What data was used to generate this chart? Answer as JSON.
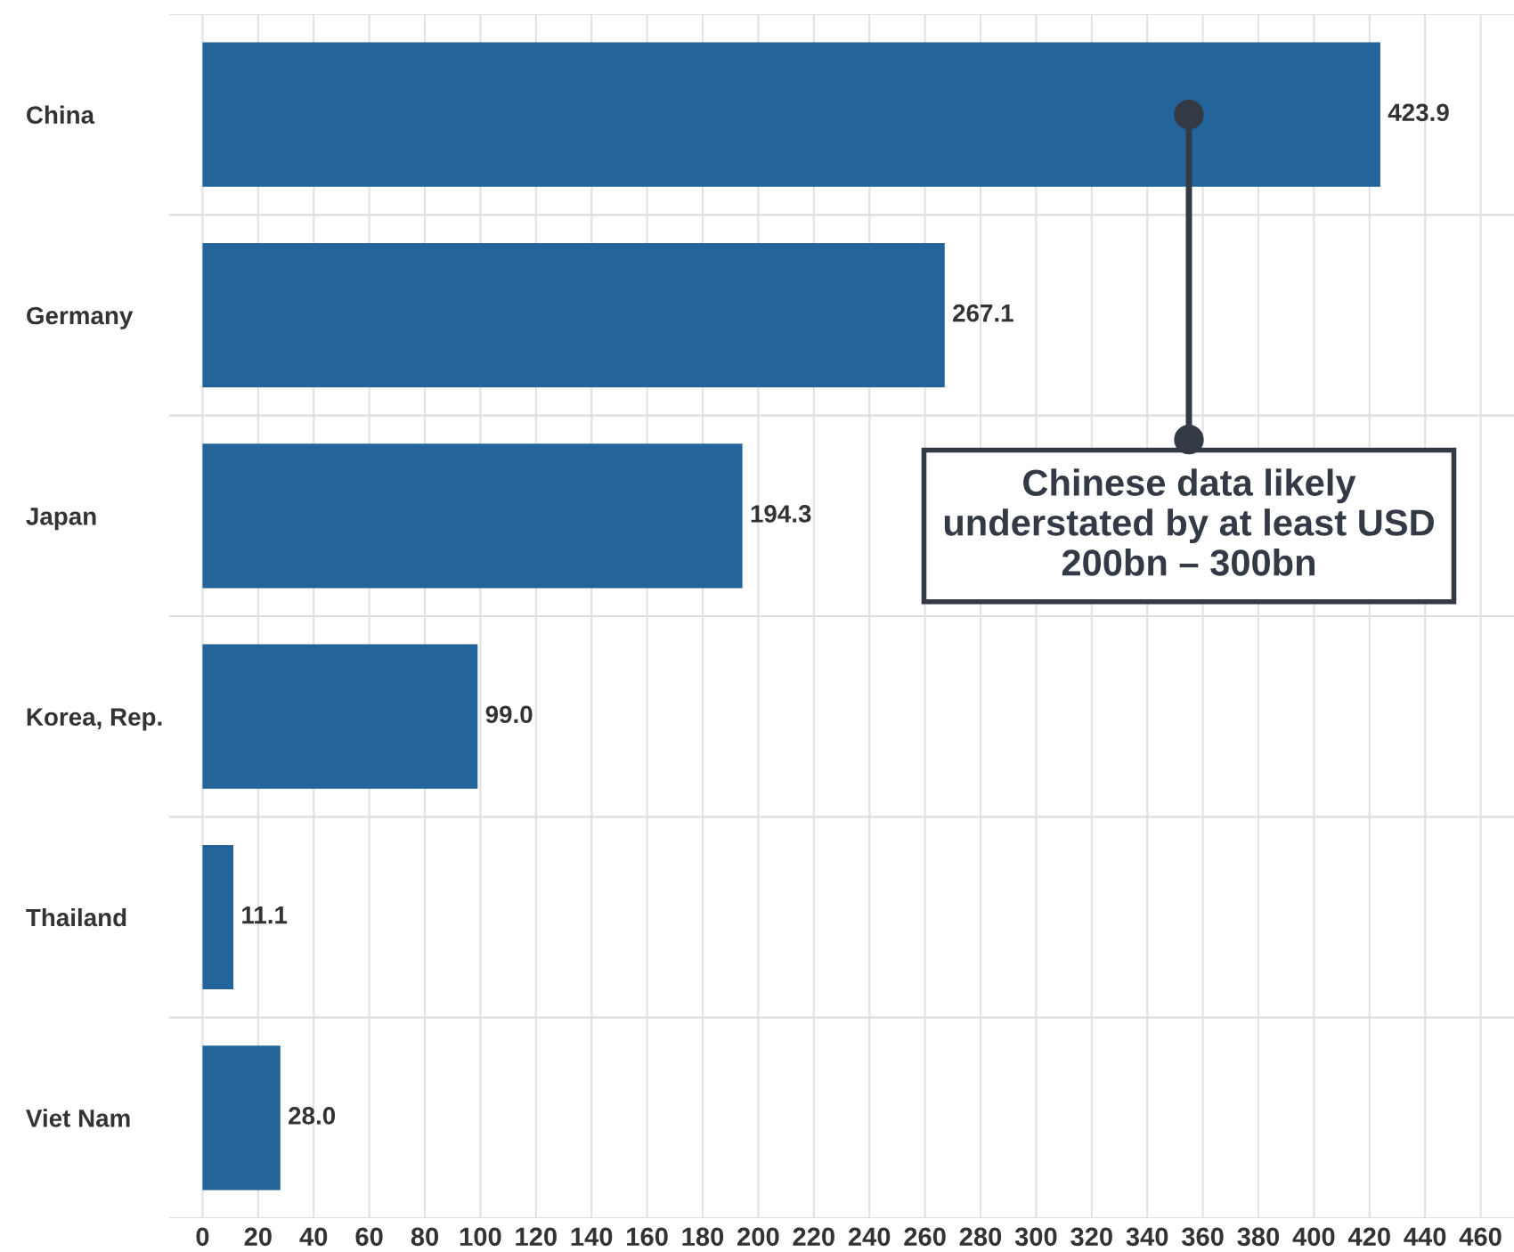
{
  "chart_data": {
    "type": "bar",
    "orientation": "horizontal",
    "categories": [
      "China",
      "Germany",
      "Japan",
      "Korea, Rep.",
      "Thailand",
      "Viet Nam"
    ],
    "values": [
      423.9,
      267.1,
      194.3,
      99.0,
      11.1,
      28.0
    ],
    "value_labels": [
      "423.9",
      "267.1",
      "194.3",
      "99.0",
      "11.1",
      "28.0"
    ],
    "color": "#23649a",
    "xlim": [
      -12,
      472
    ],
    "xticks": [
      0,
      20,
      40,
      60,
      80,
      100,
      120,
      140,
      160,
      180,
      200,
      220,
      240,
      260,
      280,
      300,
      320,
      340,
      360,
      380,
      400,
      420,
      440,
      460
    ],
    "grid": "x",
    "annotations": [
      {
        "text": "Chinese data likely understated by at least USD 200bn – 300bn",
        "x": 355,
        "y": "China"
      }
    ]
  }
}
